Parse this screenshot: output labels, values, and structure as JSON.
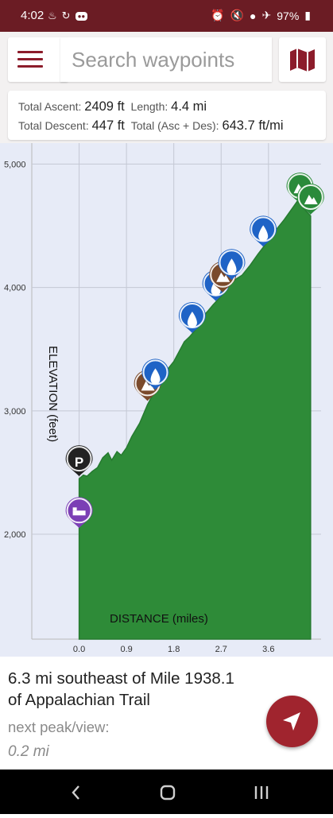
{
  "status_bar": {
    "time": "4:02",
    "battery": "97%"
  },
  "search": {
    "placeholder": "Search waypoints"
  },
  "stats": {
    "total_ascent_label": "Total Ascent:",
    "total_ascent": "2409 ft",
    "length_label": "Length:",
    "length": "4.4 mi",
    "total_descent_label": "Total Descent:",
    "total_descent": "447 ft",
    "total_asc_des_label": "Total (Asc + Des):",
    "total_asc_des": "643.7 ft/mi"
  },
  "chart_data": {
    "type": "area",
    "xlabel": "DISTANCE (miles)",
    "ylabel": "ELEVATION (feet)",
    "x_ticks": [
      "0.0",
      "0.9",
      "1.8",
      "2.7",
      "3.6"
    ],
    "y_ticks": [
      "5,000",
      "4,000",
      "3,000",
      "2,000"
    ],
    "xlim": [
      -0.9,
      4.6
    ],
    "ylim": [
      1150,
      5170
    ],
    "grid": true,
    "fill_color": "#2e8b38",
    "series": [
      {
        "x": [
          0.0,
          0.0,
          0.08,
          0.15,
          0.25,
          0.35,
          0.45,
          0.55,
          0.62,
          0.72,
          0.8,
          0.9,
          1.0,
          1.15,
          1.3,
          1.45,
          1.55,
          1.65,
          1.8,
          1.9,
          2.0,
          2.1,
          2.2,
          2.3,
          2.45,
          2.55,
          2.7,
          2.8,
          2.95,
          3.1,
          3.25,
          3.4,
          3.6,
          3.75,
          3.9,
          4.05,
          4.15,
          4.25,
          4.4
        ],
        "y": [
          2050,
          2450,
          2480,
          2470,
          2510,
          2540,
          2620,
          2660,
          2600,
          2670,
          2640,
          2700,
          2790,
          2900,
          3050,
          3170,
          3230,
          3320,
          3400,
          3480,
          3560,
          3600,
          3650,
          3740,
          3810,
          3860,
          3930,
          3990,
          4060,
          4100,
          4180,
          4270,
          4380,
          4470,
          4550,
          4640,
          4700,
          4650,
          4580
        ]
      }
    ],
    "markers": [
      {
        "type": "lodging",
        "x": 0.0,
        "y": 2050,
        "color": "#7b3fb5"
      },
      {
        "type": "parking",
        "x": 0.0,
        "y": 2470,
        "color": "#222222"
      },
      {
        "type": "peak-view",
        "x": 1.3,
        "y": 3080,
        "color": "#7a4a2c"
      },
      {
        "type": "water",
        "x": 1.45,
        "y": 3170,
        "color": "#1f63c6"
      },
      {
        "type": "water",
        "x": 2.15,
        "y": 3630,
        "color": "#1f63c6"
      },
      {
        "type": "water",
        "x": 2.6,
        "y": 3890,
        "color": "#1f63c6"
      },
      {
        "type": "peak-view",
        "x": 2.73,
        "y": 3960,
        "color": "#7a4a2c"
      },
      {
        "type": "water",
        "x": 2.9,
        "y": 4060,
        "color": "#1f63c6"
      },
      {
        "type": "water",
        "x": 3.5,
        "y": 4330,
        "color": "#1f63c6"
      },
      {
        "type": "peak",
        "x": 4.2,
        "y": 4680,
        "color": "#2a8a3a"
      },
      {
        "type": "peak",
        "x": 4.4,
        "y": 4590,
        "color": "#2a8a3a"
      }
    ]
  },
  "info": {
    "location_line1": "6.3 mi southeast of Mile 1938.1",
    "location_line2": "of Appalachian Trail",
    "next_label": "next peak/view:",
    "next_distance": "0.2 mi"
  }
}
